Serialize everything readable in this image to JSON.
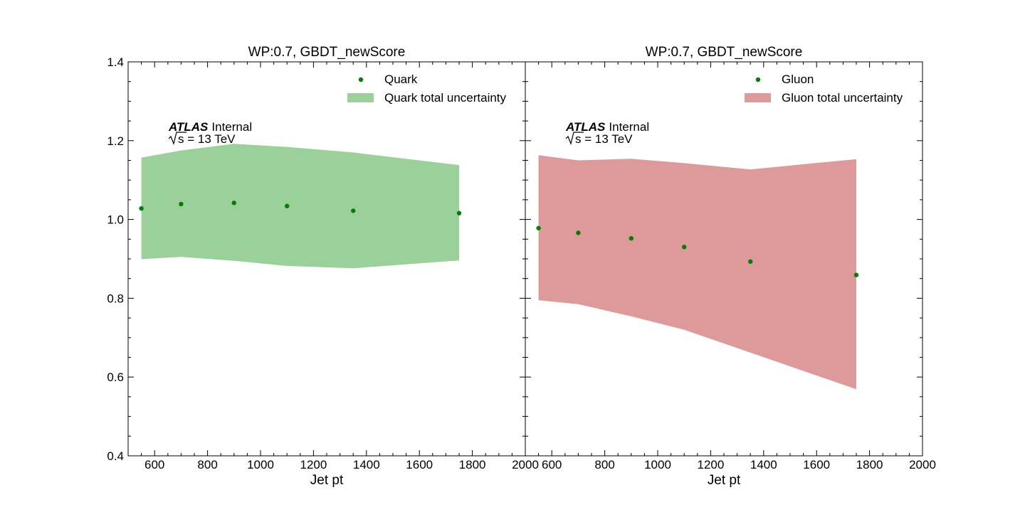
{
  "chart_data": [
    {
      "type": "line",
      "title": "WP:0.7, GBDT_newScore",
      "xlabel": "Jet pt",
      "ylabel": "",
      "xlim": [
        500,
        2000
      ],
      "ylim": [
        0.4,
        1.4
      ],
      "xticks": [
        "600",
        "800",
        "1000",
        "1200",
        "1400",
        "1600",
        "1800",
        "2000"
      ],
      "yticks": [
        "0.4",
        "0.6",
        "0.8",
        "1.0",
        "1.2",
        "1.4"
      ],
      "grid": false,
      "legend_position": "top-right",
      "atlas_label": "ATLAS",
      "atlas_status": "Internal",
      "energy_label": "s = 13 TeV",
      "series": [
        {
          "name": "Quark",
          "kind": "points",
          "color": "#008000",
          "x": [
            550,
            700,
            900,
            1100,
            1350,
            1750
          ],
          "y": [
            1.028,
            1.039,
            1.042,
            1.034,
            1.022,
            1.016
          ]
        },
        {
          "name": "Quark total uncertainty",
          "kind": "band",
          "color": "#9bd09b",
          "x": [
            550,
            700,
            900,
            1100,
            1350,
            1750
          ],
          "upper": [
            1.157,
            1.175,
            1.192,
            1.184,
            1.17,
            1.138
          ],
          "lower": [
            0.899,
            0.905,
            0.895,
            0.882,
            0.876,
            0.896
          ]
        }
      ]
    },
    {
      "type": "line",
      "title": "WP:0.7, GBDT_newScore",
      "xlabel": "Jet pt",
      "ylabel": "",
      "xlim": [
        500,
        2000
      ],
      "ylim": [
        0.4,
        1.4
      ],
      "xticks": [
        "600",
        "800",
        "1000",
        "1200",
        "1400",
        "1600",
        "1800",
        "2000"
      ],
      "yticks": [
        "0.4",
        "0.6",
        "0.8",
        "1.0",
        "1.2",
        "1.4"
      ],
      "grid": false,
      "legend_position": "top-right",
      "atlas_label": "ATLAS",
      "atlas_status": "Internal",
      "energy_label": "s = 13 TeV",
      "series": [
        {
          "name": "Gluon",
          "kind": "points",
          "color": "#008000",
          "x": [
            550,
            700,
            900,
            1100,
            1350,
            1750
          ],
          "y": [
            0.978,
            0.966,
            0.952,
            0.93,
            0.893,
            0.859
          ]
        },
        {
          "name": "Gluon total uncertainty",
          "kind": "band",
          "color": "#de9a9a",
          "x": [
            550,
            700,
            900,
            1100,
            1350,
            1750
          ],
          "upper": [
            1.163,
            1.15,
            1.154,
            1.143,
            1.127,
            1.153
          ],
          "lower": [
            0.795,
            0.785,
            0.754,
            0.72,
            0.662,
            0.569
          ]
        }
      ]
    }
  ]
}
